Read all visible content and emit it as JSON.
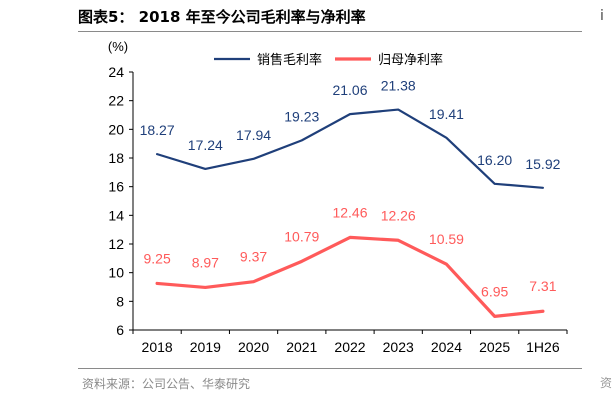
{
  "figure": {
    "title": "图表5：  2018 年至今公司毛利率与净利率",
    "source": "资料来源：公司公告、华泰研究"
  },
  "edge_glyphs": {
    "top": "i",
    "bottom": "资"
  },
  "chart_data": {
    "type": "line",
    "categories": [
      "2018",
      "2019",
      "2020",
      "2021",
      "2022",
      "2023",
      "2024",
      "2025",
      "1H26"
    ],
    "series": [
      {
        "name": "销售毛利率",
        "color": "#1f3f7a",
        "values": [
          18.27,
          17.24,
          17.94,
          19.23,
          21.06,
          21.38,
          19.41,
          16.2,
          15.92
        ],
        "labels": [
          "18.27",
          "17.24",
          "17.94",
          "19.23",
          "21.06",
          "21.38",
          "19.41",
          "16.20",
          "15.92"
        ]
      },
      {
        "name": "归母净利率",
        "color": "#ff5a5a",
        "values": [
          9.25,
          8.97,
          9.37,
          10.79,
          12.46,
          12.26,
          10.59,
          6.95,
          7.31
        ],
        "labels": [
          "9.25",
          "8.97",
          "9.37",
          "10.79",
          "12.46",
          "12.26",
          "10.59",
          "6.95",
          "7.31"
        ]
      }
    ],
    "ylim": [
      6,
      24
    ],
    "yticks": [
      "6",
      "8",
      "10",
      "12",
      "14",
      "16",
      "18",
      "20",
      "22",
      "24"
    ],
    "yunit": "(%)",
    "legend_position": "top-center",
    "grid": false
  }
}
